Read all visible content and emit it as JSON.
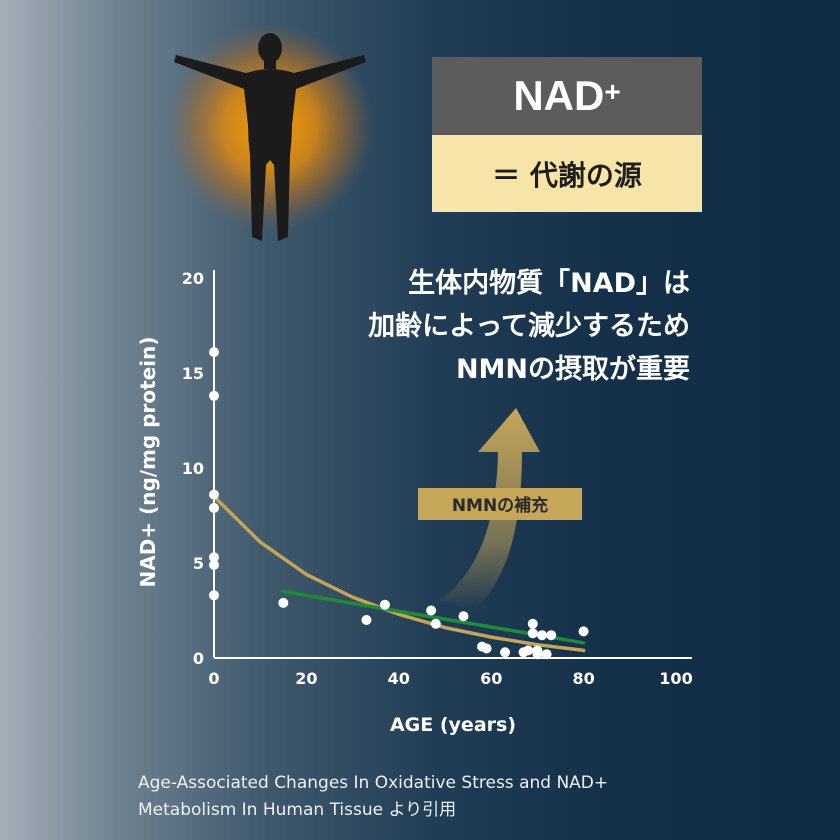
{
  "header": {
    "nad_label": "NAD",
    "nad_sup": "+",
    "metabolism_label": "＝ 代謝の源"
  },
  "message": {
    "line1": "生体内物質「NAD」は",
    "line2": "加齢によって減少するため",
    "line3": "NMNの摂取が重要"
  },
  "callout": {
    "label": "NMNの補充"
  },
  "caption": {
    "line1": "Age-Associated Changes In Oxidative Stress and NAD+",
    "line2": "Metabolism In Human Tissue より引用"
  },
  "colors": {
    "gold_curve": "#c3a559",
    "green_trend": "#1e8a3a",
    "points": "#ffffff",
    "glow": "#f0a000",
    "callout_bg": "#c6a659",
    "metab_bg": "#f6e4a8",
    "nad_bg": "#5c5c5c"
  },
  "icons": {
    "figure": "human-figure-icon",
    "arrow": "up-arrow-icon"
  },
  "chart_data": {
    "type": "scatter",
    "xlabel": "AGE (years)",
    "ylabel": "NAD+ (ng/mg protein)",
    "xlim": [
      0,
      100
    ],
    "ylim": [
      0,
      20
    ],
    "xticks": [
      0,
      20,
      40,
      60,
      80,
      100
    ],
    "yticks": [
      0,
      5,
      10,
      15,
      20
    ],
    "grid": false,
    "points": [
      {
        "x": 0,
        "y": 16.1
      },
      {
        "x": 0,
        "y": 13.8
      },
      {
        "x": 0,
        "y": 8.6
      },
      {
        "x": 0,
        "y": 7.9
      },
      {
        "x": 0,
        "y": 5.3
      },
      {
        "x": 0,
        "y": 4.9
      },
      {
        "x": 0,
        "y": 3.3
      },
      {
        "x": 15,
        "y": 2.9
      },
      {
        "x": 33,
        "y": 2.0
      },
      {
        "x": 37,
        "y": 2.8
      },
      {
        "x": 47,
        "y": 2.5
      },
      {
        "x": 48,
        "y": 1.8
      },
      {
        "x": 54,
        "y": 2.2
      },
      {
        "x": 58,
        "y": 0.6
      },
      {
        "x": 59,
        "y": 0.5
      },
      {
        "x": 63,
        "y": 0.3
      },
      {
        "x": 67,
        "y": 0.3
      },
      {
        "x": 68,
        "y": 0.4
      },
      {
        "x": 69,
        "y": 1.8
      },
      {
        "x": 69,
        "y": 1.3
      },
      {
        "x": 70,
        "y": 0.2
      },
      {
        "x": 70,
        "y": 0.4
      },
      {
        "x": 71,
        "y": 1.2
      },
      {
        "x": 72,
        "y": 0.2
      },
      {
        "x": 73,
        "y": 1.2
      },
      {
        "x": 80,
        "y": 1.4
      }
    ],
    "curves": [
      {
        "style": "exponential",
        "x": [
          0,
          10,
          20,
          30,
          40,
          50,
          60,
          70,
          80
        ],
        "y": [
          8.5,
          6.1,
          4.4,
          3.2,
          2.3,
          1.6,
          1.1,
          0.7,
          0.4
        ]
      },
      {
        "style": "linear",
        "x": [
          15,
          80
        ],
        "y": [
          3.5,
          0.8
        ]
      }
    ]
  }
}
